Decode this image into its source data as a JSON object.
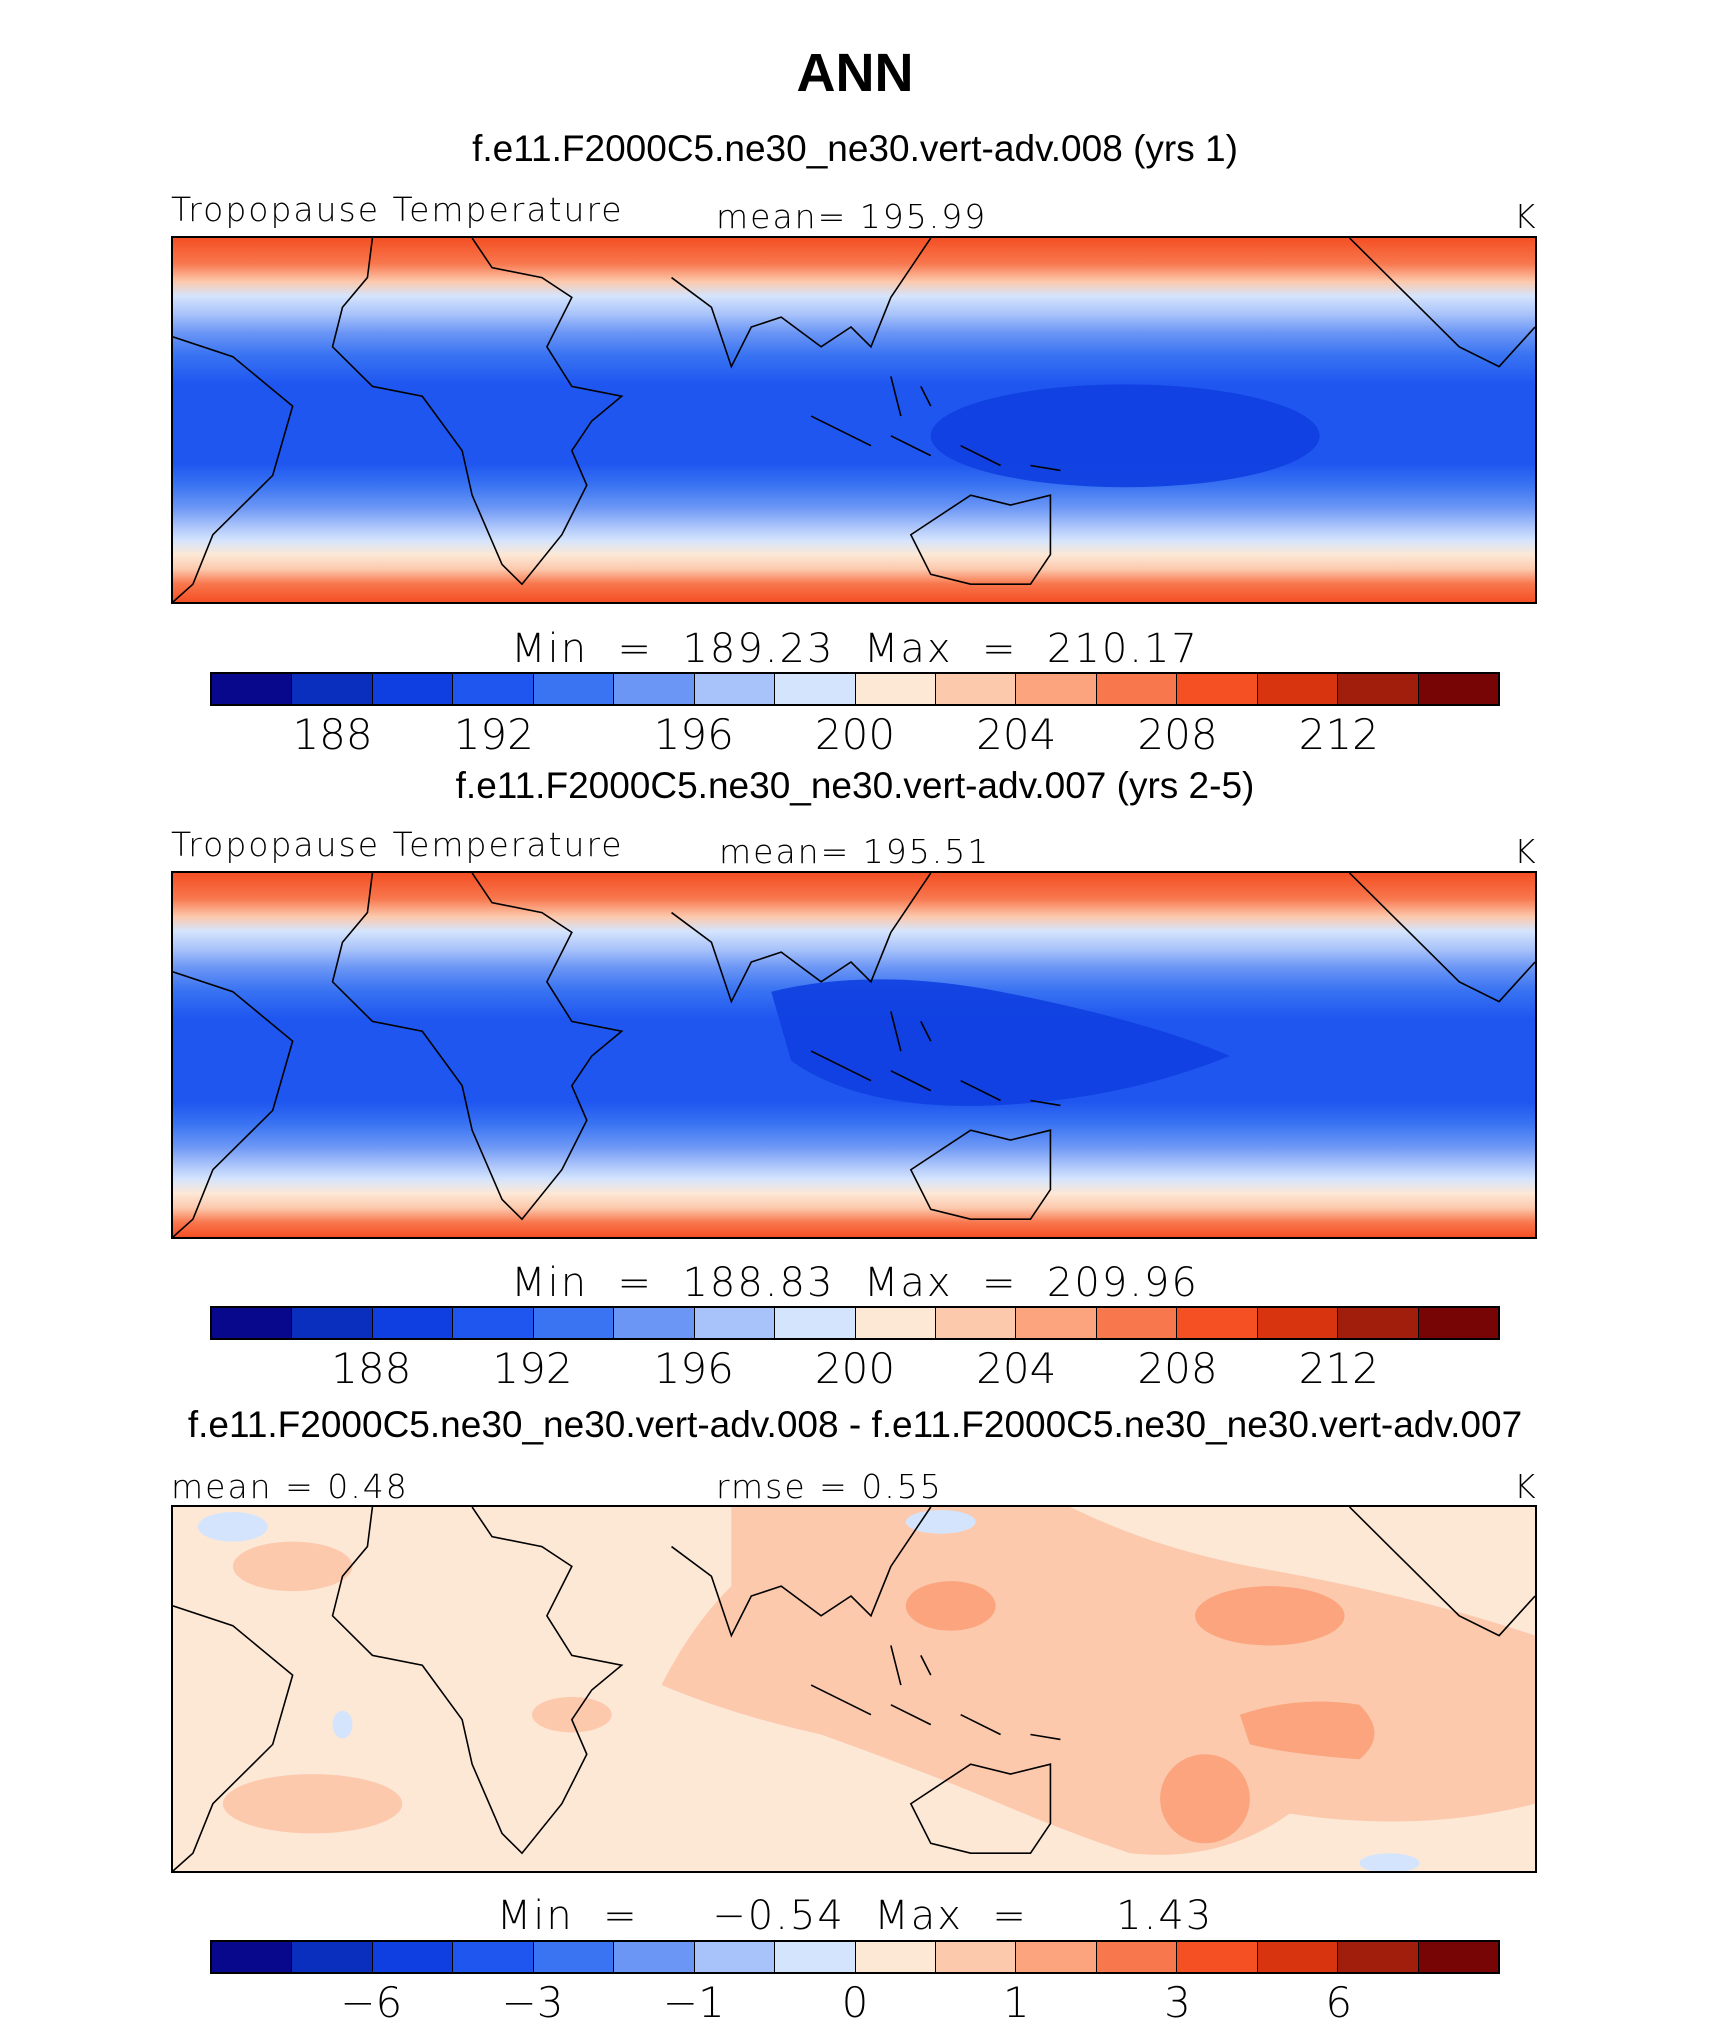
{
  "title": "ANN",
  "colorbar_colors": [
    "#08088c",
    "#0a2fbf",
    "#0f3fe0",
    "#1f56f0",
    "#3a74f2",
    "#6b96f5",
    "#a8c2fa",
    "#d4e4fd",
    "#fde8d6",
    "#fcc9ad",
    "#fba47e",
    "#f8774d",
    "#f54f24",
    "#d93410",
    "#a01e0b",
    "#780505"
  ],
  "panels": [
    {
      "title": "f.e11.F2000C5.ne30_ne30.vert-adv.008 (yrs 1)",
      "left_label": "Tropopause Temperature",
      "center_label": "mean=  195.99",
      "units": "K",
      "minmax": "Min  =  189.23  Max  =  210.17",
      "ticks": [
        "188",
        "192",
        "196",
        "200",
        "204",
        "208",
        "212"
      ]
    },
    {
      "title": "f.e11.F2000C5.ne30_ne30.vert-adv.007 (yrs 2-5)",
      "left_label": "Tropopause Temperature",
      "center_label": "mean=  195.51",
      "units": "K",
      "minmax": "Min  =  188.83  Max  =  209.96",
      "ticks": [
        "188",
        "192",
        "196",
        "200",
        "204",
        "208",
        "212"
      ]
    },
    {
      "title": "f.e11.F2000C5.ne30_ne30.vert-adv.008 - f.e11.F2000C5.ne30_ne30.vert-adv.007",
      "left_label": "mean  =     0.48",
      "center_label": "rmse  =     0.55",
      "units": "K",
      "minmax": "Min  =     −0.54  Max  =      1.43",
      "ticks": [
        "−6",
        "−3",
        "−1",
        "0",
        "1",
        "3",
        "6"
      ]
    }
  ]
}
